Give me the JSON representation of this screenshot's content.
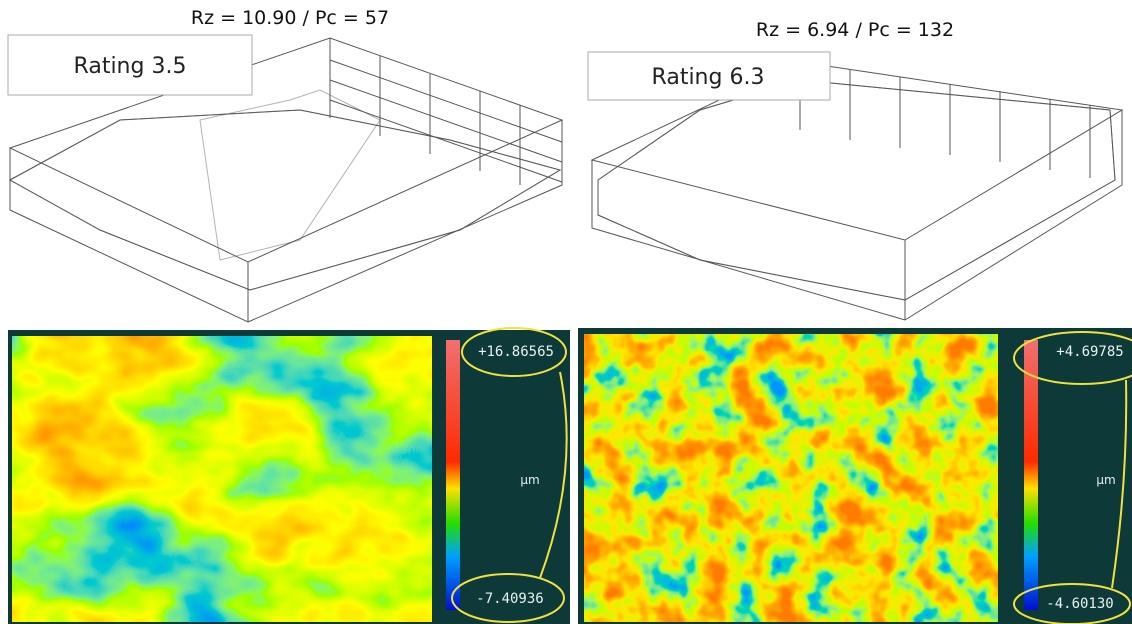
{
  "panels": [
    {
      "header": "Rz = 10.90 /   Pc = 57",
      "rating": "Rating 3.5",
      "scale_max": "+16.86565",
      "unit": "µm",
      "scale_min": "-7.40936"
    },
    {
      "header": "Rz = 6.94  /   Pc = 132",
      "rating": "Rating  6.3",
      "scale_max": "+4.69785",
      "unit": "µm",
      "scale_min": "-4.60130"
    }
  ]
}
